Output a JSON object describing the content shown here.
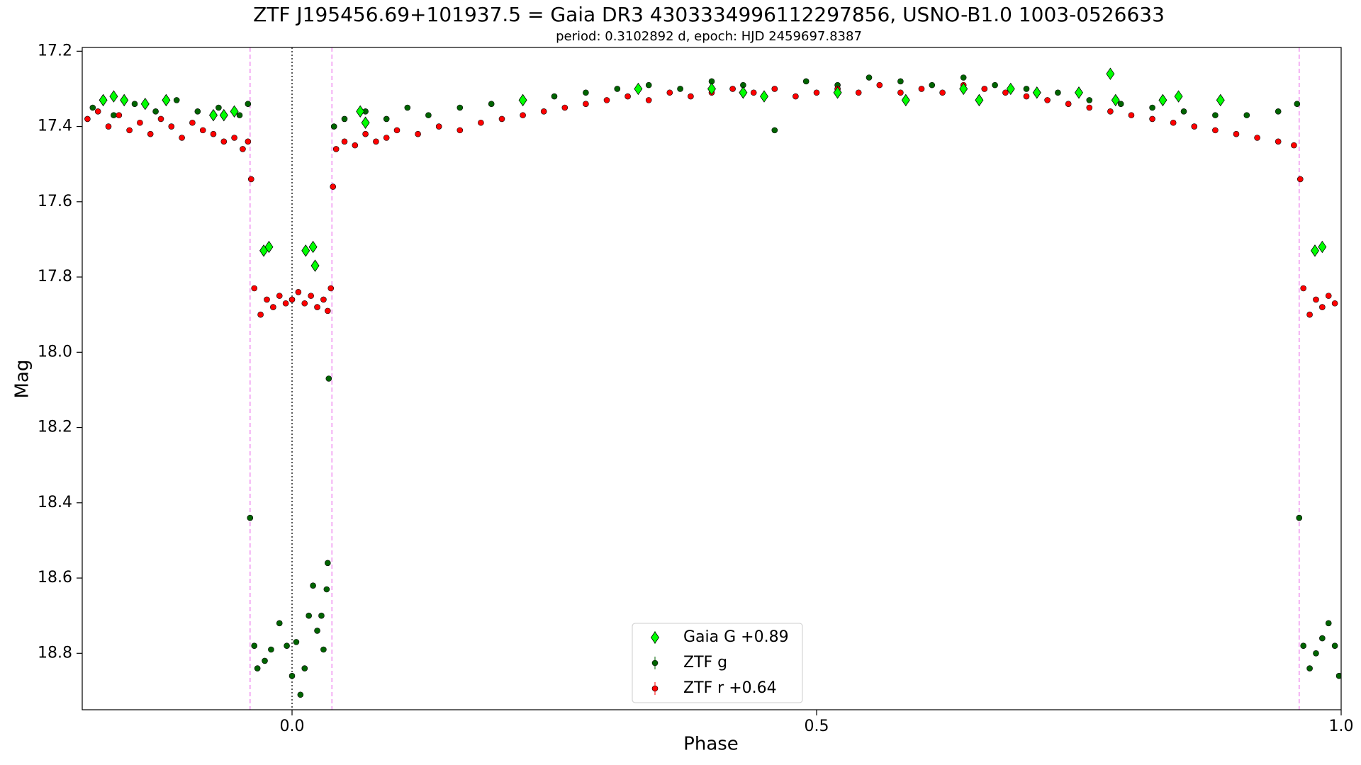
{
  "chart_data": {
    "type": "scatter",
    "title": "ZTF J195456.69+101937.5 = Gaia DR3 4303334996112297856, USNO-B1.0 1003-0526633",
    "subtitle": "period: 0.3102892 d, epoch: HJD 2459697.8387",
    "x_label": "Phase",
    "y_label": "Mag",
    "xlim": [
      -0.2,
      1.0
    ],
    "ylim": [
      17.19,
      18.95
    ],
    "y_inverted": true,
    "xticks": [
      {
        "value": 0,
        "label": "0.0"
      },
      0.5,
      {
        "value": 1,
        "label": "1.0"
      }
    ],
    "yticks": [
      17.2,
      17.4,
      17.6,
      17.8,
      {
        "value": 18,
        "label": "18.0"
      },
      18.2,
      18.4,
      18.6,
      18.8
    ],
    "legend": "lower center",
    "vlines": [
      {
        "x": -0.04,
        "color": "#ee82ee",
        "style": "dashed"
      },
      {
        "x": 0.0,
        "color": "#000000",
        "style": "dotted"
      },
      {
        "x": 0.038,
        "color": "#ee82ee",
        "style": "dashed"
      },
      {
        "x": 0.96,
        "color": "#ee82ee",
        "style": "dashed"
      }
    ],
    "series": [
      {
        "name": "Gaia G +0.89",
        "color": "#00ff00",
        "marker": "diamond",
        "x": [
          -0.18,
          -0.17,
          -0.16,
          -0.14,
          -0.12,
          -0.075,
          -0.065,
          -0.055,
          -0.027,
          -0.022,
          0.013,
          0.02,
          0.022,
          0.065,
          0.07,
          0.22,
          0.33,
          0.4,
          0.43,
          0.45,
          0.52,
          0.585,
          0.64,
          0.655,
          0.685,
          0.71,
          0.75,
          0.78,
          0.785,
          0.83,
          0.845,
          0.885,
          0.975,
          0.982
        ],
        "values": [
          17.33,
          17.32,
          17.33,
          17.34,
          17.33,
          17.37,
          17.37,
          17.36,
          17.73,
          17.72,
          17.73,
          17.72,
          17.77,
          17.36,
          17.39,
          17.33,
          17.3,
          17.3,
          17.31,
          17.32,
          17.31,
          17.33,
          17.3,
          17.33,
          17.3,
          17.31,
          17.31,
          17.26,
          17.33,
          17.33,
          17.32,
          17.33,
          17.73,
          17.72
        ]
      },
      {
        "name": "ZTF g",
        "color": "#006400",
        "marker": "circle",
        "x": [
          -0.19,
          -0.17,
          -0.15,
          -0.13,
          -0.11,
          -0.09,
          -0.07,
          -0.05,
          -0.042,
          -0.04,
          -0.036,
          -0.033,
          -0.026,
          -0.02,
          -0.012,
          -0.005,
          0.0,
          0.004,
          0.008,
          0.012,
          0.016,
          0.02,
          0.024,
          0.028,
          0.03,
          0.033,
          0.034,
          0.035,
          0.04,
          0.05,
          0.07,
          0.09,
          0.11,
          0.13,
          0.16,
          0.19,
          0.22,
          0.25,
          0.28,
          0.31,
          0.34,
          0.37,
          0.4,
          0.43,
          0.46,
          0.49,
          0.52,
          0.55,
          0.58,
          0.61,
          0.64,
          0.67,
          0.7,
          0.73,
          0.76,
          0.79,
          0.82,
          0.85,
          0.88,
          0.91,
          0.94,
          0.958,
          0.96,
          0.964,
          0.97,
          0.976,
          0.982,
          0.988,
          0.994,
          0.998
        ],
        "values": [
          17.35,
          17.37,
          17.34,
          17.36,
          17.33,
          17.36,
          17.35,
          17.37,
          17.34,
          18.44,
          18.78,
          18.84,
          18.82,
          18.79,
          18.72,
          18.78,
          18.86,
          18.77,
          18.91,
          18.84,
          18.7,
          18.62,
          18.74,
          18.7,
          18.79,
          18.63,
          18.56,
          18.07,
          17.4,
          17.38,
          17.36,
          17.38,
          17.35,
          17.37,
          17.35,
          17.34,
          17.33,
          17.32,
          17.31,
          17.3,
          17.29,
          17.3,
          17.28,
          17.29,
          17.41,
          17.28,
          17.29,
          17.27,
          17.28,
          17.29,
          17.27,
          17.29,
          17.3,
          17.31,
          17.33,
          17.34,
          17.35,
          17.36,
          17.37,
          17.37,
          17.36,
          17.34,
          18.44,
          18.78,
          18.84,
          18.8,
          18.76,
          18.72,
          18.78,
          18.86
        ]
      },
      {
        "name": "ZTF r +0.64",
        "color": "#ff0000",
        "marker": "circle",
        "x": [
          -0.195,
          -0.185,
          -0.175,
          -0.165,
          -0.155,
          -0.145,
          -0.135,
          -0.125,
          -0.115,
          -0.105,
          -0.095,
          -0.085,
          -0.075,
          -0.065,
          -0.055,
          -0.047,
          -0.042,
          -0.039,
          -0.036,
          -0.03,
          -0.024,
          -0.018,
          -0.012,
          -0.006,
          0.0,
          0.006,
          0.012,
          0.018,
          0.024,
          0.03,
          0.034,
          0.037,
          0.039,
          0.042,
          0.05,
          0.06,
          0.07,
          0.08,
          0.09,
          0.1,
          0.12,
          0.14,
          0.16,
          0.18,
          0.2,
          0.22,
          0.24,
          0.26,
          0.28,
          0.3,
          0.32,
          0.34,
          0.36,
          0.38,
          0.4,
          0.42,
          0.44,
          0.46,
          0.48,
          0.5,
          0.52,
          0.54,
          0.56,
          0.58,
          0.6,
          0.62,
          0.64,
          0.66,
          0.68,
          0.7,
          0.72,
          0.74,
          0.76,
          0.78,
          0.8,
          0.82,
          0.84,
          0.86,
          0.88,
          0.9,
          0.92,
          0.94,
          0.955,
          0.961,
          0.964,
          0.97,
          0.976,
          0.982,
          0.988,
          0.994
        ],
        "values": [
          17.38,
          17.36,
          17.4,
          17.37,
          17.41,
          17.39,
          17.42,
          17.38,
          17.4,
          17.43,
          17.39,
          17.41,
          17.42,
          17.44,
          17.43,
          17.46,
          17.44,
          17.54,
          17.83,
          17.9,
          17.86,
          17.88,
          17.85,
          17.87,
          17.86,
          17.84,
          17.87,
          17.85,
          17.88,
          17.86,
          17.89,
          17.83,
          17.56,
          17.46,
          17.44,
          17.45,
          17.42,
          17.44,
          17.43,
          17.41,
          17.42,
          17.4,
          17.41,
          17.39,
          17.38,
          17.37,
          17.36,
          17.35,
          17.34,
          17.33,
          17.32,
          17.33,
          17.31,
          17.32,
          17.31,
          17.3,
          17.31,
          17.3,
          17.32,
          17.31,
          17.3,
          17.31,
          17.29,
          17.31,
          17.3,
          17.31,
          17.29,
          17.3,
          17.31,
          17.32,
          17.33,
          17.34,
          17.35,
          17.36,
          17.37,
          17.38,
          17.39,
          17.4,
          17.41,
          17.42,
          17.43,
          17.44,
          17.45,
          17.54,
          17.83,
          17.9,
          17.86,
          17.88,
          17.85,
          17.87
        ]
      }
    ]
  }
}
